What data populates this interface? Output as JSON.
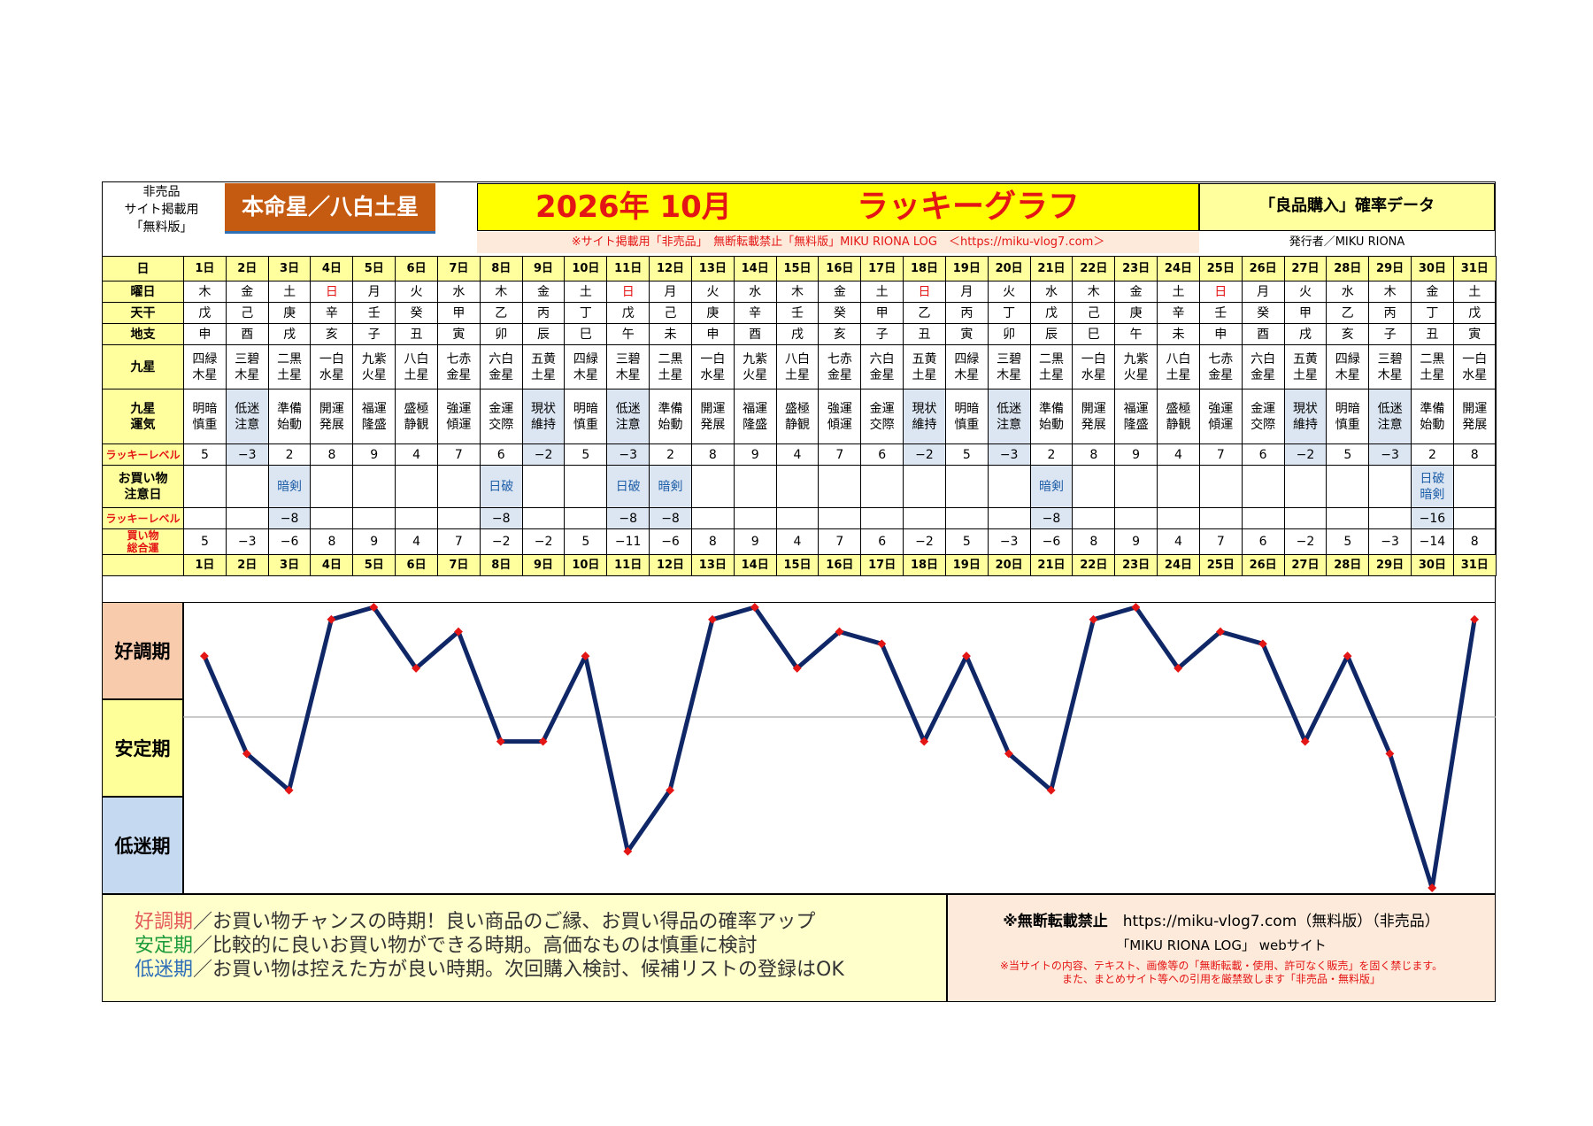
{
  "header": {
    "top_left": [
      "非売品",
      "サイト掲載用",
      "「無料版」"
    ],
    "honmei": "本命星／八白土星",
    "year_month": "2026年 10月",
    "title": "ラッキーグラフ",
    "right_title": "「良品購入」確率データ",
    "notice": "※サイト掲載用「非売品」　無断転載禁止「無料版」MIKU RIONA LOG　＜https://miku-vlog7.com＞",
    "publisher": "発行者／MIKU RIONA"
  },
  "labels": {
    "day": "日",
    "weekday": "曜日",
    "tenkan": "天干",
    "chishi": "地支",
    "kyusei": "九星",
    "kyusei_unki": [
      "九星",
      "運気"
    ],
    "lucky_level": "ラッキーレベル",
    "caution": [
      "お買い物",
      "注意日"
    ],
    "lucky_level2": "ラッキーレベル",
    "total": [
      "買い物",
      "総合運"
    ]
  },
  "days": [
    "1日",
    "2日",
    "3日",
    "4日",
    "5日",
    "6日",
    "7日",
    "8日",
    "9日",
    "10日",
    "11日",
    "12日",
    "13日",
    "14日",
    "15日",
    "16日",
    "17日",
    "18日",
    "19日",
    "20日",
    "21日",
    "22日",
    "23日",
    "24日",
    "25日",
    "26日",
    "27日",
    "28日",
    "29日",
    "30日",
    "31日"
  ],
  "weekday": [
    "木",
    "金",
    "土",
    "日",
    "月",
    "火",
    "水",
    "木",
    "金",
    "土",
    "日",
    "月",
    "火",
    "水",
    "木",
    "金",
    "土",
    "日",
    "月",
    "火",
    "水",
    "木",
    "金",
    "土",
    "日",
    "月",
    "火",
    "水",
    "木",
    "金",
    "土"
  ],
  "tenkan": [
    "戊",
    "己",
    "庚",
    "辛",
    "壬",
    "癸",
    "甲",
    "乙",
    "丙",
    "丁",
    "戊",
    "己",
    "庚",
    "辛",
    "壬",
    "癸",
    "甲",
    "乙",
    "丙",
    "丁",
    "戊",
    "己",
    "庚",
    "辛",
    "壬",
    "癸",
    "甲",
    "乙",
    "丙",
    "丁",
    "戊"
  ],
  "chishi": [
    "申",
    "酉",
    "戌",
    "亥",
    "子",
    "丑",
    "寅",
    "卯",
    "辰",
    "巳",
    "午",
    "未",
    "申",
    "酉",
    "戌",
    "亥",
    "子",
    "丑",
    "寅",
    "卯",
    "辰",
    "巳",
    "午",
    "未",
    "申",
    "酉",
    "戌",
    "亥",
    "子",
    "丑",
    "寅"
  ],
  "kyusei": [
    [
      "四緑",
      "木星"
    ],
    [
      "三碧",
      "木星"
    ],
    [
      "二黒",
      "土星"
    ],
    [
      "一白",
      "水星"
    ],
    [
      "九紫",
      "火星"
    ],
    [
      "八白",
      "土星"
    ],
    [
      "七赤",
      "金星"
    ],
    [
      "六白",
      "金星"
    ],
    [
      "五黄",
      "土星"
    ],
    [
      "四緑",
      "木星"
    ],
    [
      "三碧",
      "木星"
    ],
    [
      "二黒",
      "土星"
    ],
    [
      "一白",
      "水星"
    ],
    [
      "九紫",
      "火星"
    ],
    [
      "八白",
      "土星"
    ],
    [
      "七赤",
      "金星"
    ],
    [
      "六白",
      "金星"
    ],
    [
      "五黄",
      "土星"
    ],
    [
      "四緑",
      "木星"
    ],
    [
      "三碧",
      "木星"
    ],
    [
      "二黒",
      "土星"
    ],
    [
      "一白",
      "水星"
    ],
    [
      "九紫",
      "火星"
    ],
    [
      "八白",
      "土星"
    ],
    [
      "七赤",
      "金星"
    ],
    [
      "六白",
      "金星"
    ],
    [
      "五黄",
      "土星"
    ],
    [
      "四緑",
      "木星"
    ],
    [
      "三碧",
      "木星"
    ],
    [
      "二黒",
      "土星"
    ],
    [
      "一白",
      "水星"
    ]
  ],
  "unki": [
    [
      "明暗",
      "慎重"
    ],
    [
      "低迷",
      "注意"
    ],
    [
      "準備",
      "始動"
    ],
    [
      "開運",
      "発展"
    ],
    [
      "福運",
      "隆盛"
    ],
    [
      "盛極",
      "静観"
    ],
    [
      "強運",
      "傾運"
    ],
    [
      "金運",
      "交際"
    ],
    [
      "現状",
      "維持"
    ],
    [
      "明暗",
      "慎重"
    ],
    [
      "低迷",
      "注意"
    ],
    [
      "準備",
      "始動"
    ],
    [
      "開運",
      "発展"
    ],
    [
      "福運",
      "隆盛"
    ],
    [
      "盛極",
      "静観"
    ],
    [
      "強運",
      "傾運"
    ],
    [
      "金運",
      "交際"
    ],
    [
      "現状",
      "維持"
    ],
    [
      "明暗",
      "慎重"
    ],
    [
      "低迷",
      "注意"
    ],
    [
      "準備",
      "始動"
    ],
    [
      "開運",
      "発展"
    ],
    [
      "福運",
      "隆盛"
    ],
    [
      "盛極",
      "静観"
    ],
    [
      "強運",
      "傾運"
    ],
    [
      "金運",
      "交際"
    ],
    [
      "現状",
      "維持"
    ],
    [
      "明暗",
      "慎重"
    ],
    [
      "低迷",
      "注意"
    ],
    [
      "準備",
      "始動"
    ],
    [
      "開運",
      "発展"
    ]
  ],
  "lucky_level": [
    5,
    -3,
    2,
    8,
    9,
    4,
    7,
    6,
    -2,
    5,
    -3,
    2,
    8,
    9,
    4,
    7,
    6,
    -2,
    5,
    -3,
    2,
    8,
    9,
    4,
    7,
    6,
    -2,
    5,
    -3,
    2,
    8
  ],
  "caution": [
    [],
    [],
    [
      "暗剣"
    ],
    [],
    [],
    [],
    [],
    [
      "日破"
    ],
    [],
    [],
    [
      "日破"
    ],
    [
      "暗剣"
    ],
    [],
    [],
    [],
    [],
    [],
    [],
    [],
    [],
    [
      "暗剣"
    ],
    [],
    [],
    [],
    [],
    [],
    [],
    [],
    [],
    [
      "日破",
      "暗剣"
    ],
    []
  ],
  "caution_level": [
    "",
    "",
    "-8",
    "",
    "",
    "",
    "",
    "-8",
    "",
    "",
    "-8",
    "-8",
    "",
    "",
    "",
    "",
    "",
    "",
    "",
    "",
    "-8",
    "",
    "",
    "",
    "",
    "",
    "",
    "",
    "",
    "-16",
    ""
  ],
  "total": [
    5,
    -3,
    -6,
    8,
    9,
    4,
    7,
    -2,
    -2,
    5,
    -11,
    -6,
    8,
    9,
    4,
    7,
    6,
    -2,
    5,
    -3,
    -6,
    8,
    9,
    4,
    7,
    6,
    -2,
    5,
    -3,
    -14,
    8
  ],
  "zones": [
    "好調期",
    "安定期",
    "低迷期"
  ],
  "chart_data": {
    "type": "line",
    "x": [
      "1日",
      "2日",
      "3日",
      "4日",
      "5日",
      "6日",
      "7日",
      "8日",
      "9日",
      "10日",
      "11日",
      "12日",
      "13日",
      "14日",
      "15日",
      "16日",
      "17日",
      "18日",
      "19日",
      "20日",
      "21日",
      "22日",
      "23日",
      "24日",
      "25日",
      "26日",
      "27日",
      "28日",
      "29日",
      "30日",
      "31日"
    ],
    "series": [
      {
        "values": [
          5,
          -3,
          -6,
          8,
          9,
          4,
          7,
          -2,
          -2,
          5,
          -11,
          -6,
          8,
          9,
          4,
          7,
          6,
          -2,
          5,
          -3,
          -6,
          8,
          9,
          4,
          7,
          6,
          -2,
          5,
          -3,
          -14,
          8
        ]
      }
    ],
    "ylim": [
      -14,
      9
    ],
    "line_color": "#0f2766",
    "marker_color": "#e41515",
    "reference_line": 0
  },
  "footer": {
    "left": [
      {
        "term": "好調期",
        "text": "／お買い物チャンスの時期！良い商品のご縁、お買い得品の確率アップ"
      },
      {
        "term": "安定期",
        "text": "／比較的に良いお買い物ができる時期。高価なものは慎重に検討"
      },
      {
        "term": "低迷期",
        "text": "／お買い物は控えた方が良い時期。次回購入検討、候補リストの登録はOK"
      }
    ],
    "right_bold": "※無断転載禁止",
    "right_url": "https://miku-vlog7.com（無料版）（非売品）",
    "right_site": "「MIKU RIONA LOG」 webサイト",
    "right_note1": "※当サイトの内容、テキスト、画像等の「無断転載・使用、許可なく販売」を固く禁じます。",
    "right_note2": "また、まとめサイト等への引用を厳禁致します「非売品・無料版」"
  },
  "colors": {
    "yellow": "#ffff00",
    "light_yellow": "#ffff9e",
    "orange": "#c55a11",
    "red": "#e41515",
    "good_zone": "#f8cbad",
    "stable_zone": "#ffff99",
    "low_zone": "#c5d9f1"
  }
}
